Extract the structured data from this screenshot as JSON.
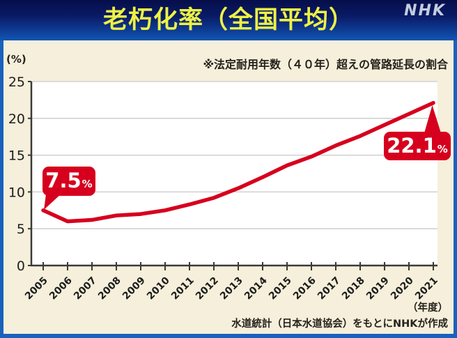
{
  "header": {
    "title": "老朽化率（全国平均）",
    "logo": "NHK"
  },
  "chart_data": {
    "type": "line",
    "title": "老朽化率（全国平均）",
    "note": "※法定耐用年数（４０年）超えの管路延長の割合",
    "unit_label": "(%)",
    "x_axis_label": "（年度）",
    "categories": [
      "2005",
      "2006",
      "2007",
      "2008",
      "2009",
      "2010",
      "2011",
      "2012",
      "2013",
      "2014",
      "2015",
      "2016",
      "2017",
      "2018",
      "2019",
      "2020",
      "2021"
    ],
    "values": [
      7.5,
      6.0,
      6.2,
      6.8,
      7.0,
      7.5,
      8.3,
      9.2,
      10.5,
      12.0,
      13.6,
      14.8,
      16.3,
      17.6,
      19.1,
      20.6,
      22.1
    ],
    "ylim": [
      0,
      25
    ],
    "yticks": [
      0,
      5,
      10,
      15,
      20,
      25
    ],
    "grid": "horizontal",
    "legend": false,
    "line_color": "#d6001e",
    "annotations": [
      {
        "category": "2005",
        "value_label": "7.5",
        "unit": "%"
      },
      {
        "category": "2021",
        "value_label": "22.1",
        "unit": "%"
      }
    ]
  },
  "footer": {
    "source": "水道統計（日本水道協会）をもとにNHKが作成"
  },
  "colors": {
    "accent_red": "#d6001e",
    "frame_blue": "#1a61bd",
    "header_gradient_top": "#050e49",
    "header_gradient_bottom": "#1155b4",
    "panel_cream": "#f5efdb",
    "title_yellow": "#edf243",
    "logo_gray": "#c3cde0",
    "plot_background": "#ffffff",
    "grid_gray": "#c9c9c9",
    "axis_dark": "#3a3a36",
    "text_dark": "#26221c"
  }
}
